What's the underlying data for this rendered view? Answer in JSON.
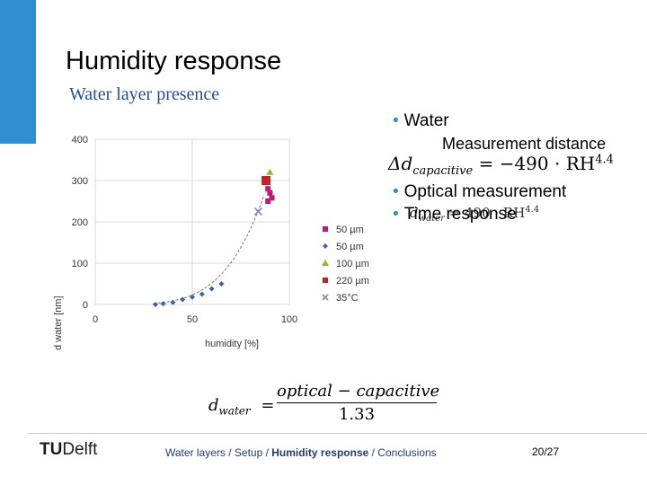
{
  "slide": {
    "title": "Humidity response",
    "subtitle": "Water layer presence",
    "bullets": [
      {
        "text": "Water"
      },
      {
        "text": "Measurement distance"
      },
      {
        "text": "Optical measurement"
      },
      {
        "text": "Time response"
      }
    ],
    "equations": {
      "capacitive": {
        "lhs": "Δd",
        "sub": "capacitive",
        "rhs": "= −490 · RH",
        "exp": "4.4"
      },
      "water": {
        "lhs": "d",
        "sub": "water",
        "rhs": "= 490 · RH",
        "exp": "4.4"
      },
      "bottom": {
        "lhs": "d",
        "sub": "water",
        "eq": "=",
        "numerator": "optical − capacitive",
        "denominator": "1.33"
      }
    },
    "footer": {
      "logo_tu": "TU",
      "logo_delft": "Delft",
      "nav_before": "Water layers / Setup / ",
      "nav_current": "Humidity response",
      "nav_after": " / Conclusions",
      "page": "20/27"
    }
  },
  "colors": {
    "accent": "#2f8fd0",
    "subtitle": "#1f4e9a"
  },
  "chart_data": {
    "type": "scatter",
    "xlabel": "humidity [%]",
    "ylabel": "d water [nm]",
    "xlim": [
      0,
      100
    ],
    "ylim": [
      0,
      400
    ],
    "xticks": [
      "0",
      "50",
      "100"
    ],
    "yticks": [
      "0",
      "100",
      "200",
      "300",
      "400"
    ],
    "grid": true,
    "legend_position": "right",
    "series": [
      {
        "name": "50 µm",
        "marker": "square",
        "color": "#c2177a",
        "points": [
          [
            89,
            250
          ],
          [
            91,
            258
          ],
          [
            90,
            270
          ],
          [
            89,
            280
          ]
        ]
      },
      {
        "name": "50 µm",
        "marker": "diamond",
        "color": "#3a64a8",
        "points": [
          [
            31,
            0
          ],
          [
            35,
            2
          ],
          [
            40,
            5
          ],
          [
            45,
            12
          ],
          [
            50,
            18
          ],
          [
            55,
            25
          ],
          [
            60,
            38
          ],
          [
            65,
            50
          ]
        ]
      },
      {
        "name": "100 µm",
        "marker": "triangle",
        "color": "#8fb838",
        "points": [
          [
            90,
            320
          ]
        ]
      },
      {
        "name": "220 µm",
        "marker": "square",
        "color": "#c0232a",
        "points": [
          [
            88,
            300
          ]
        ]
      },
      {
        "name": "35°C",
        "marker": "x",
        "color": "#8a8aa8",
        "points": [
          [
            84,
            225
          ]
        ]
      }
    ],
    "fit": {
      "style": "dashed",
      "color": "#777777",
      "exponent": 4.4,
      "coef": 490
    }
  }
}
